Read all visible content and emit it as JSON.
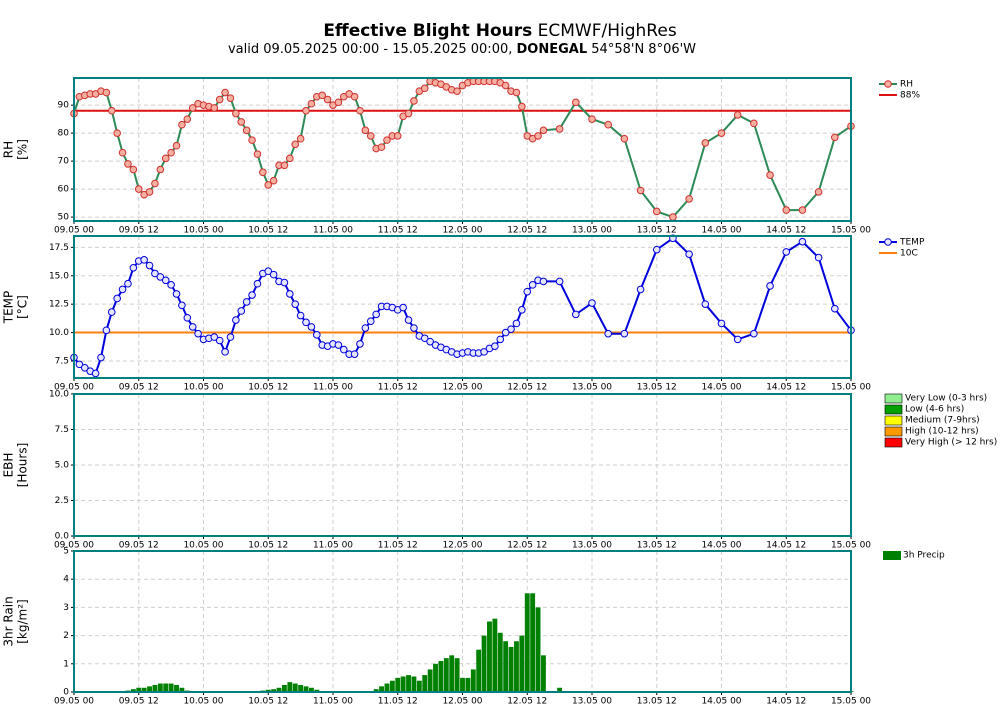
{
  "chart_data": {
    "type": "multi-panel",
    "title": {
      "bold": "Effective Blight Hours",
      "rest": "ECMWF/HighRes"
    },
    "subtitle": {
      "pre": "valid 09.05.2025 00:00 - 15.05.2025 00:00,",
      "bold": "DONEGAL",
      "post": "54°58'N 8°06'W"
    },
    "xlim": [
      "09.05 00",
      "15.05 00"
    ],
    "xticks": [
      "09.05 00",
      "09.05 12",
      "10.05 00",
      "10.05 12",
      "11.05 00",
      "11.05 12",
      "12.05 00",
      "12.05 12",
      "13.05 00",
      "13.05 12",
      "14.05 00",
      "14.05 12",
      "15.05 00"
    ],
    "x": [
      "09.05 00",
      "09.05 01",
      "09.05 02",
      "09.05 03",
      "09.05 04",
      "09.05 05",
      "09.05 06",
      "09.05 07",
      "09.05 08",
      "09.05 09",
      "09.05 10",
      "09.05 11",
      "09.05 12",
      "09.05 13",
      "09.05 14",
      "09.05 15",
      "09.05 16",
      "09.05 17",
      "09.05 18",
      "09.05 19",
      "09.05 20",
      "09.05 21",
      "09.05 22",
      "09.05 23",
      "10.05 00",
      "10.05 01",
      "10.05 02",
      "10.05 03",
      "10.05 04",
      "10.05 05",
      "10.05 06",
      "10.05 07",
      "10.05 08",
      "10.05 09",
      "10.05 10",
      "10.05 11",
      "10.05 12",
      "10.05 13",
      "10.05 14",
      "10.05 15",
      "10.05 16",
      "10.05 17",
      "10.05 18",
      "10.05 19",
      "10.05 20",
      "10.05 21",
      "10.05 22",
      "10.05 23",
      "11.05 00",
      "11.05 01",
      "11.05 02",
      "11.05 03",
      "11.05 04",
      "11.05 05",
      "11.05 06",
      "11.05 07",
      "11.05 08",
      "11.05 09",
      "11.05 10",
      "11.05 11",
      "11.05 12",
      "11.05 13",
      "11.05 14",
      "11.05 15",
      "11.05 16",
      "11.05 17",
      "11.05 18",
      "11.05 19",
      "11.05 20",
      "11.05 21",
      "11.05 22",
      "11.05 23",
      "12.05 00",
      "12.05 01",
      "12.05 02",
      "12.05 03",
      "12.05 04",
      "12.05 05",
      "12.05 06",
      "12.05 07",
      "12.05 08",
      "12.05 09",
      "12.05 10",
      "12.05 11",
      "12.05 12",
      "12.05 13",
      "12.05 14",
      "12.05 15",
      "12.05 18",
      "12.05 21",
      "13.05 00",
      "13.05 03",
      "13.05 06",
      "13.05 09",
      "13.05 12",
      "13.05 15",
      "13.05 18",
      "13.05 21",
      "14.05 00",
      "14.05 03",
      "14.05 06",
      "14.05 09",
      "14.05 12",
      "14.05 15",
      "14.05 18",
      "14.05 21",
      "15.05 00"
    ],
    "panels": [
      {
        "type": "line",
        "ylabel": [
          "RH",
          "[%]"
        ],
        "ylim": [
          48.6,
          99.7
        ],
        "yticks": [
          50,
          60,
          70,
          80,
          90
        ],
        "grid": true,
        "series": [
          {
            "name": "RH",
            "color": "#2e8b57",
            "marker_color": "#d03030",
            "marker_fill": "#f4b0a0",
            "values": [
              87,
              93,
              93.5,
              94,
              94,
              95,
              94.5,
              88,
              80,
              73,
              69,
              67,
              60,
              58,
              59,
              62,
              67,
              71,
              73,
              75.5,
              83,
              85,
              89,
              90.5,
              90,
              89.5,
              89,
              92,
              94.5,
              92.5,
              87,
              84,
              81,
              77.5,
              72.5,
              66,
              61.5,
              63,
              68.5,
              68.5,
              71,
              76,
              78,
              88,
              90.5,
              93,
              93.5,
              92,
              90,
              91,
              93,
              94,
              93,
              88,
              81,
              79,
              74.5,
              75,
              77.5,
              79,
              79,
              86,
              87,
              91.5,
              95,
              96,
              98.5,
              98,
              97.5,
              96.5,
              95.5,
              95,
              97,
              98,
              98.5,
              98.5,
              98.5,
              98.5,
              98.5,
              98,
              97,
              95,
              94.5,
              89.5,
              79,
              78,
              79,
              81,
              81.5,
              91,
              85,
              83,
              78,
              59.5,
              52,
              50,
              56.5,
              76.5,
              80,
              86.5,
              83.5,
              65,
              52.5,
              52.5,
              59,
              78.5,
              82.5
            ]
          }
        ],
        "thresholds": [
          {
            "name": "88%",
            "value": 88,
            "color": "#dd1111"
          }
        ]
      },
      {
        "type": "line",
        "ylabel": [
          "TEMP",
          "[°C]"
        ],
        "ylim": [
          6.0,
          18.5
        ],
        "yticks": [
          7.5,
          {
            "value": 10,
            "label": "10.0"
          },
          12.5,
          {
            "value": 15,
            "label": "15.0"
          },
          17.5
        ],
        "grid": true,
        "series": [
          {
            "name": "TEMP",
            "color": "#0000dd",
            "marker_color": "#0000dd",
            "marker_fill": "#e6e6ff",
            "values": [
              7.8,
              7.2,
              6.9,
              6.6,
              6.4,
              7.8,
              10.2,
              11.8,
              13.0,
              13.8,
              14.3,
              15.7,
              16.3,
              16.4,
              15.9,
              15.2,
              14.9,
              14.6,
              14.2,
              13.4,
              12.4,
              11.3,
              10.5,
              9.9,
              9.4,
              9.5,
              9.6,
              9.3,
              8.3,
              9.6,
              11.1,
              11.9,
              12.7,
              13.3,
              14.3,
              15.2,
              15.4,
              15.1,
              14.5,
              14.4,
              13.4,
              12.5,
              11.5,
              10.9,
              10.5,
              9.8,
              8.9,
              8.8,
              9.0,
              8.9,
              8.5,
              8.1,
              8.1,
              9.0,
              10.4,
              11.0,
              11.6,
              12.3,
              12.3,
              12.2,
              12.0,
              12.2,
              11.1,
              10.4,
              9.7,
              9.5,
              9.2,
              8.9,
              8.7,
              8.5,
              8.3,
              8.1,
              8.2,
              8.3,
              8.2,
              8.2,
              8.3,
              8.6,
              8.8,
              9.4,
              10.0,
              10.3,
              10.8,
              12.0,
              13.6,
              14.2,
              14.6,
              14.5,
              14.5,
              11.6,
              12.6,
              9.9,
              9.9,
              13.8,
              17.3,
              18.3,
              16.9,
              12.5,
              10.8,
              9.4,
              9.9,
              14.1,
              17.1,
              18.0,
              16.6,
              12.1,
              10.2
            ]
          }
        ],
        "thresholds": [
          {
            "name": "10C",
            "value": 10,
            "color": "#ff7f0e"
          }
        ]
      },
      {
        "type": "bar",
        "ylabel": [
          "EBH",
          "[Hours]"
        ],
        "ylim": [
          0,
          10
        ],
        "yticks": [
          {
            "value": 0,
            "label": "0.0"
          },
          2.5,
          {
            "value": 5,
            "label": "5.0"
          },
          7.5,
          {
            "value": 10,
            "label": "10.0"
          }
        ],
        "grid": true,
        "series": [],
        "levels": [
          {
            "name": "Very Low (0-3 hrs)",
            "color": "#90ee90"
          },
          {
            "name": "Low (4-6 hrs)",
            "color": "#00a000"
          },
          {
            "name": "Medium (7-9hrs)",
            "color": "#ffff00"
          },
          {
            "name": "High (10-12 hrs)",
            "color": "#ff9900"
          },
          {
            "name": "Very High (> 12 hrs)",
            "color": "#ff0000"
          }
        ]
      },
      {
        "type": "bar",
        "ylabel": [
          "3hr Rain",
          "[kg/m²]"
        ],
        "ylim": [
          0,
          5
        ],
        "yticks": [
          0,
          1,
          2,
          3,
          4,
          5
        ],
        "grid": true,
        "series": [
          {
            "name": "3h Precip",
            "color": "#008000",
            "values": [
              0,
              0,
              0.02,
              0.02,
              0.02,
              0.02,
              0.02,
              0.02,
              0.02,
              0.02,
              0.05,
              0.1,
              0.15,
              0.15,
              0.2,
              0.25,
              0.3,
              0.3,
              0.3,
              0.25,
              0.15,
              0.05,
              0.03,
              0.03,
              0.03,
              0.03,
              0.03,
              0.03,
              0.03,
              0.03,
              0.03,
              0.03,
              0.03,
              0.03,
              0.03,
              0.05,
              0.08,
              0.1,
              0.15,
              0.25,
              0.35,
              0.3,
              0.25,
              0.2,
              0.15,
              0.08,
              0.03,
              0.03,
              0.03,
              0.03,
              0.03,
              0.03,
              0.03,
              0.03,
              0.03,
              0.03,
              0.1,
              0.2,
              0.3,
              0.4,
              0.5,
              0.55,
              0.6,
              0.55,
              0.4,
              0.6,
              0.8,
              1.0,
              1.1,
              1.2,
              1.3,
              1.2,
              0.5,
              0.5,
              0.8,
              1.5,
              2.0,
              2.5,
              2.6,
              2.1,
              1.8,
              1.6,
              1.8,
              2.0,
              3.5,
              3.5,
              3.0,
              1.3,
              0.15,
              0.03,
              0.03,
              0.03,
              0.03,
              0.03,
              0.03,
              0.03,
              0.03,
              0.03,
              0.03,
              0.03,
              0.03,
              0.03,
              0.03,
              0.03,
              0.03,
              0.03,
              0.03
            ]
          }
        ]
      }
    ]
  }
}
